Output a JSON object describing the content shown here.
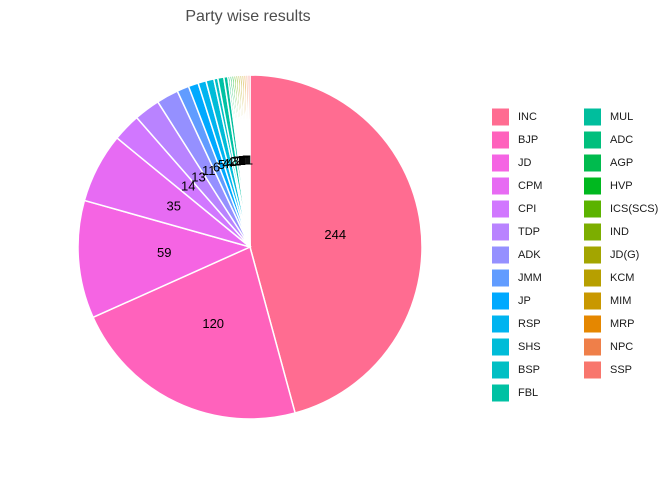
{
  "chart_data": {
    "type": "pie",
    "title": "Party wise results",
    "categories": [
      "INC",
      "BJP",
      "JD",
      "CPM",
      "CPI",
      "TDP",
      "ADK",
      "JMM",
      "JP",
      "RSP",
      "SHS",
      "BSP",
      "FBL",
      "MUL",
      "ADC",
      "AGP",
      "HVP",
      "ICS(SCS)",
      "IND",
      "JD(G)",
      "KCM",
      "MIM",
      "MRP",
      "NPC",
      "SSP"
    ],
    "values": [
      244,
      120,
      59,
      35,
      14,
      13,
      11,
      6,
      5,
      4,
      4,
      2,
      3,
      2,
      1,
      1,
      1,
      1,
      1,
      1,
      1,
      1,
      1,
      1,
      1
    ],
    "colors": [
      "#FF6C91",
      "#FF62BC",
      "#F564E3",
      "#E76BF3",
      "#D177FF",
      "#B983FF",
      "#9590FF",
      "#619CFF",
      "#00A9FF",
      "#00B4F0",
      "#00BCD8",
      "#00BFC4",
      "#00C1A3",
      "#00BE9D",
      "#00BF7D",
      "#00BB4E",
      "#00B81F",
      "#5BB300",
      "#7CAE00",
      "#A3A500",
      "#B79F00",
      "#C99800",
      "#E58700",
      "#EF7F49",
      "#F8766D"
    ],
    "legend_columns": 2
  }
}
